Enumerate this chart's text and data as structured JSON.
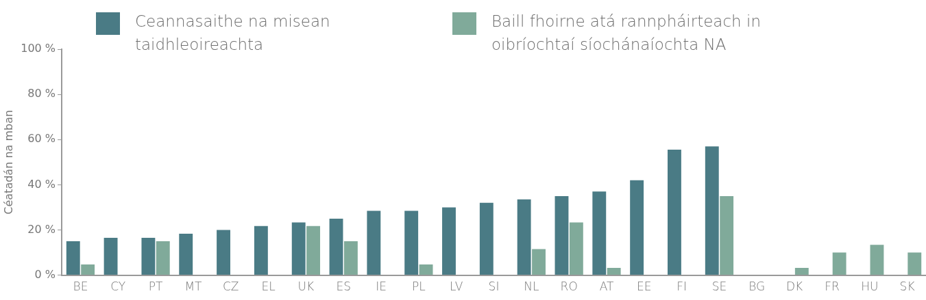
{
  "chart_data": {
    "type": "bar",
    "ylabel": "Céatadán na mban",
    "categories": [
      "BE",
      "CY",
      "PT",
      "MT",
      "CZ",
      "EL",
      "UK",
      "ES",
      "IE",
      "PL",
      "LV",
      "SI",
      "NL",
      "RO",
      "AT",
      "EE",
      "FI",
      "SE",
      "BG",
      "DK",
      "FR",
      "HU",
      "SK"
    ],
    "series": [
      {
        "name": "Ceannasaithe na misean taidhleoireachta",
        "color": "#4a7b85",
        "values": [
          15,
          16.5,
          16.5,
          18.3,
          20,
          21.7,
          23.3,
          25,
          28.5,
          28.5,
          30,
          32,
          33.5,
          35,
          37,
          42,
          55.5,
          57,
          null,
          null,
          null,
          null,
          null
        ]
      },
      {
        "name": "Baill fhoirne atá rannpháirteach in oibríochtaí síochánaíochta NA",
        "color": "#80aa9a",
        "values": [
          4.7,
          null,
          15,
          null,
          null,
          null,
          21.7,
          15,
          null,
          4.7,
          null,
          null,
          11.5,
          23.3,
          3.2,
          null,
          null,
          35,
          null,
          3.2,
          10,
          13.4,
          10
        ]
      }
    ],
    "ylim": [
      0,
      100
    ],
    "yticks": [
      {
        "value": 0,
        "label": "0 %"
      },
      {
        "value": 20,
        "label": "20 %"
      },
      {
        "value": 40,
        "label": "40 %"
      },
      {
        "value": 60,
        "label": "60 %"
      },
      {
        "value": 80,
        "label": "80 %"
      },
      {
        "value": 100,
        "label": "100 %"
      }
    ],
    "grid": false,
    "legend": "top"
  }
}
